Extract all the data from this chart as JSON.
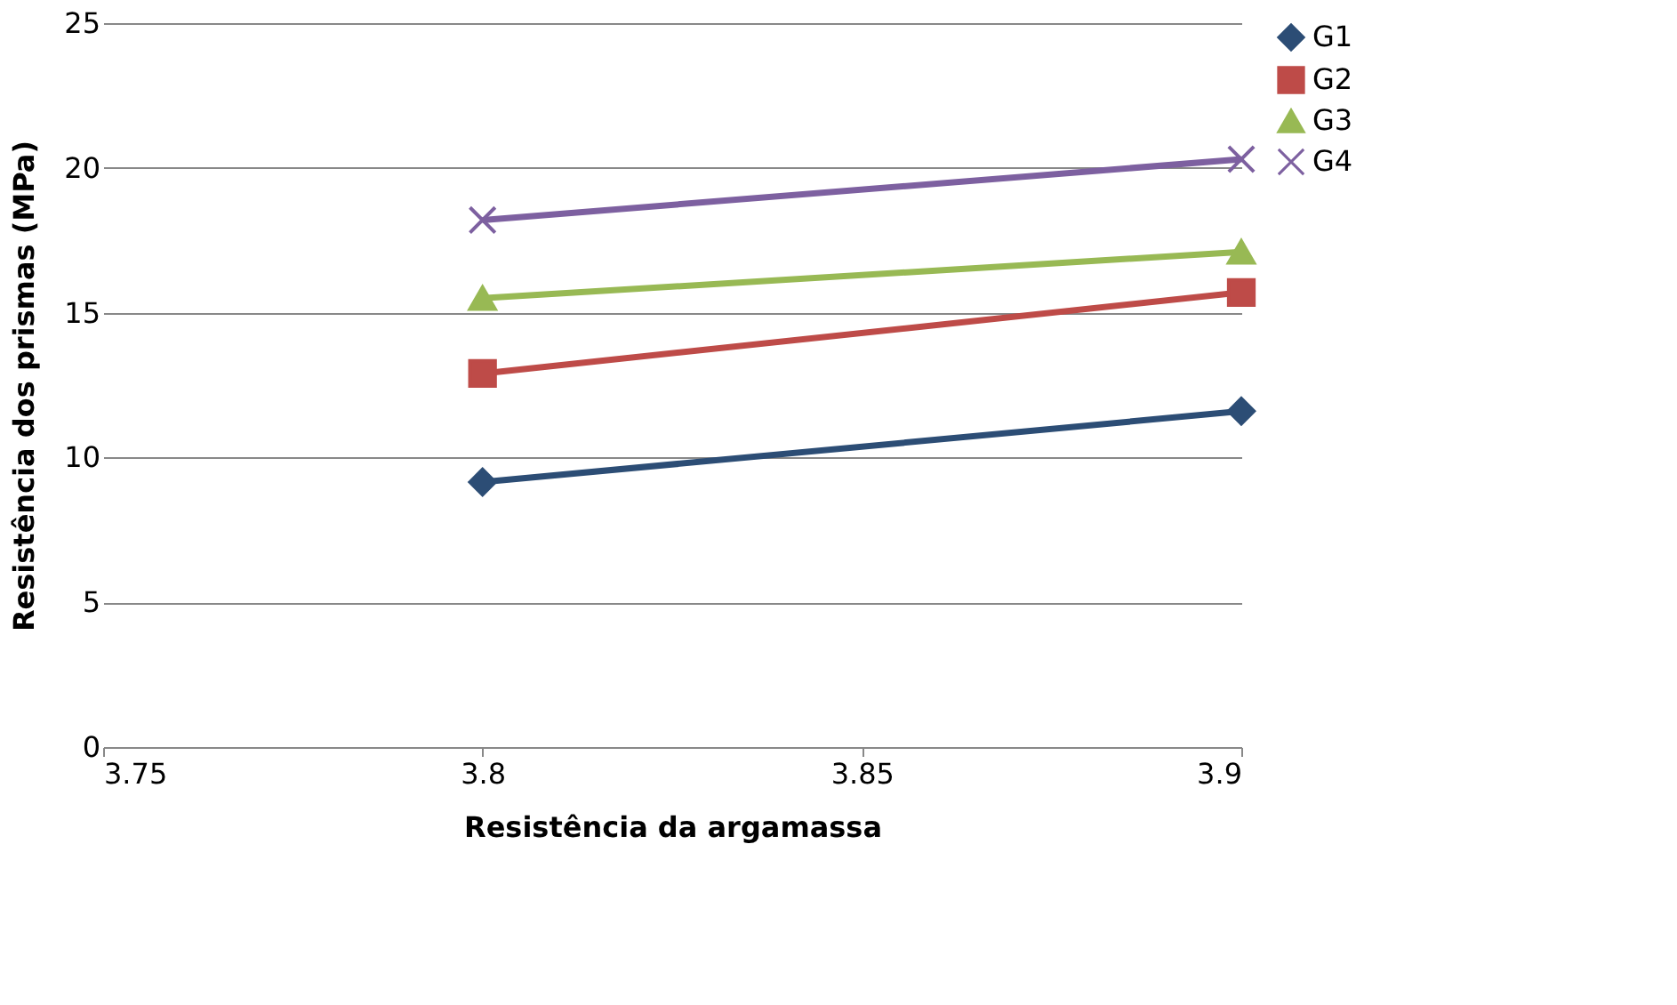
{
  "chart_data": {
    "type": "line",
    "xlabel": "Resistência da argamassa",
    "ylabel": "Resistência dos prismas (MPa)",
    "x": [
      3.8,
      3.9
    ],
    "series": [
      {
        "name": "G1",
        "color": "#2c4d75",
        "marker": "diamond",
        "values": [
          9.15,
          11.6
        ]
      },
      {
        "name": "G2",
        "color": "#be4b48",
        "marker": "square",
        "values": [
          12.9,
          15.7
        ]
      },
      {
        "name": "G3",
        "color": "#98b954",
        "marker": "triangle",
        "values": [
          15.5,
          17.1
        ]
      },
      {
        "name": "G4",
        "color": "#7d60a0",
        "marker": "cross",
        "values": [
          18.2,
          20.3
        ]
      }
    ],
    "xlim": [
      3.75,
      3.9
    ],
    "xticks": [
      3.75,
      3.8,
      3.85,
      3.9
    ],
    "ylim": [
      0,
      25
    ],
    "yticks": [
      0,
      5,
      10,
      15,
      20,
      25
    ],
    "grid": "y",
    "legend": "right",
    "line_style": "solid"
  }
}
